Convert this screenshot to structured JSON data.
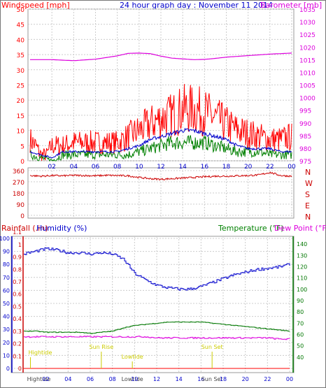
{
  "chart_data": [
    {
      "type": "line",
      "title": "24 hour graph day : November 11 2014",
      "y_left_label": "Windspeed [mph]",
      "y_right_label": "Barometer [mb]",
      "x_ticks": [
        "02",
        "04",
        "06",
        "08",
        "10",
        "12",
        "14",
        "16",
        "18",
        "20",
        "22",
        "00"
      ],
      "y_left_ticks": [
        "0",
        "5",
        "10",
        "15",
        "20",
        "25",
        "30",
        "35",
        "40",
        "45",
        "50"
      ],
      "y_right_ticks": [
        "975",
        "980",
        "985",
        "990",
        "995",
        "1000",
        "1005",
        "1010",
        "1015",
        "1020",
        "1025",
        "1030",
        "1035"
      ],
      "ylim_left": [
        0,
        50
      ],
      "ylim_right": [
        975,
        1035
      ],
      "grid": true,
      "colors": {
        "gust": "#ff0000",
        "wind": "#008000",
        "average": "#0000cc",
        "barometer": "#dd00dd"
      },
      "series": [
        {
          "key": "gust",
          "x": [
            0,
            0.5,
            1,
            1.5,
            2,
            2.5,
            3,
            4,
            5,
            6,
            7,
            8,
            9,
            10,
            11,
            12,
            13,
            14,
            15,
            16,
            17,
            18,
            19,
            20,
            21,
            22,
            23,
            24
          ],
          "values": [
            7,
            5,
            2,
            2,
            5,
            5,
            5,
            6,
            6,
            6,
            6,
            6,
            8,
            10,
            12,
            14,
            15,
            17,
            17,
            16,
            14,
            12,
            10,
            9,
            8,
            7,
            7,
            8
          ]
        },
        {
          "key": "average",
          "x": [
            0,
            1,
            2,
            3,
            4,
            5,
            6,
            7,
            8,
            9,
            10,
            11,
            12,
            13,
            14,
            15,
            16,
            17,
            18,
            19,
            20,
            21,
            22,
            23,
            24
          ],
          "values": [
            3,
            2,
            1,
            3,
            3,
            3,
            3,
            3,
            3,
            4,
            5,
            7,
            8,
            9,
            10,
            10,
            9,
            8,
            7,
            5,
            4,
            4,
            4,
            3,
            3
          ]
        },
        {
          "key": "wind",
          "x": [
            0,
            1,
            2,
            3,
            4,
            5,
            6,
            7,
            8,
            9,
            10,
            11,
            12,
            13,
            14,
            15,
            16,
            17,
            18,
            19,
            20,
            21,
            22,
            23,
            24
          ],
          "values": [
            2,
            1,
            0,
            2,
            2,
            2,
            2,
            2,
            2,
            2,
            3,
            4,
            5,
            6,
            6,
            6,
            6,
            5,
            4,
            3,
            3,
            3,
            2,
            2,
            2
          ]
        },
        {
          "key": "barometer",
          "axis": "right",
          "x": [
            0,
            2,
            4,
            6,
            8,
            9,
            10,
            11,
            12,
            13,
            14,
            15,
            16,
            17,
            18,
            20,
            22,
            24
          ],
          "values": [
            1015,
            1015,
            1014.6,
            1015.2,
            1016.5,
            1017.5,
            1017.6,
            1017.4,
            1016.4,
            1015.6,
            1015.3,
            1015,
            1015.1,
            1015.5,
            1016,
            1016.6,
            1017.2,
            1017.6
          ]
        }
      ]
    },
    {
      "type": "line",
      "y_left_ticks": [
        "360",
        "270",
        "180",
        "90",
        "0"
      ],
      "y_right_ticks": [
        "N",
        "W",
        "S",
        "E",
        "N"
      ],
      "ylim": [
        0,
        360
      ],
      "grid": true,
      "colors": {
        "direction": "#cc0000"
      },
      "series": [
        {
          "key": "direction",
          "x": [
            0,
            1,
            2,
            3,
            4,
            5,
            6,
            7,
            8,
            9,
            10,
            11,
            12,
            13,
            14,
            15,
            16,
            17,
            18,
            19,
            20,
            21,
            22,
            23,
            24
          ],
          "values": [
            320,
            315,
            320,
            318,
            322,
            320,
            318,
            322,
            320,
            318,
            305,
            295,
            290,
            295,
            300,
            305,
            310,
            315,
            315,
            318,
            320,
            325,
            345,
            320,
            315
          ]
        }
      ]
    },
    {
      "type": "line",
      "labels": {
        "rainfall": "Rainfall (.in)",
        "humidity": "Humidity (%)",
        "temperature": "Temperature (°F)",
        "dewpoint": "Dew Point (°F)"
      },
      "x_ticks": [
        "02",
        "04",
        "06",
        "08",
        "10",
        "12",
        "14",
        "16",
        "18",
        "20",
        "22",
        "00"
      ],
      "humidity_ticks": [
        "0",
        "10",
        "20",
        "30",
        "40",
        "50",
        "60",
        "70",
        "80",
        "90",
        "100"
      ],
      "rain_ticks": [
        "0",
        "0.1",
        "0.2",
        "0.3",
        "0.4",
        "0.5",
        "0.6",
        "0.7",
        "0.8",
        "0.9",
        "1",
        "1.1"
      ],
      "temp_ticks": [
        "40",
        "50",
        "60",
        "70",
        "80",
        "90",
        "100",
        "110",
        "120",
        "130",
        "140"
      ],
      "ylim_humidity": [
        0,
        100
      ],
      "ylim_temp": [
        30,
        145
      ],
      "grid": true,
      "colors": {
        "humidity": "#0000cc",
        "temperature": "#007700",
        "dewpoint": "#dd00dd",
        "rainfall": "#ff0000",
        "events": "#cccc00"
      },
      "series": [
        {
          "key": "humidity",
          "x": [
            0,
            1,
            2,
            3,
            4,
            5,
            6,
            7,
            8,
            9,
            10,
            11,
            12,
            13,
            14,
            15,
            16,
            17,
            18,
            19,
            20,
            21,
            22,
            23,
            24
          ],
          "values": [
            88,
            90,
            92,
            91,
            89,
            89,
            88,
            89,
            88,
            84,
            73,
            68,
            64,
            62,
            61,
            61,
            63,
            66,
            69,
            72,
            74,
            76,
            77,
            78,
            80
          ]
        },
        {
          "key": "temperature",
          "x": [
            0,
            1,
            2,
            3,
            4,
            5,
            6,
            7,
            8,
            9,
            10,
            11,
            12,
            13,
            14,
            15,
            16,
            17,
            18,
            19,
            20,
            21,
            22,
            23,
            24
          ],
          "values": [
            63,
            63,
            62,
            62,
            62,
            62,
            61,
            62,
            63,
            66,
            68,
            69,
            70,
            71,
            71,
            71,
            71,
            70,
            69,
            68,
            67,
            66,
            65,
            64,
            63
          ]
        },
        {
          "key": "dewpoint",
          "x": [
            0,
            1,
            2,
            3,
            4,
            5,
            6,
            7,
            8,
            9,
            10,
            11,
            12,
            13,
            14,
            15,
            16,
            17,
            18,
            19,
            20,
            21,
            22,
            23,
            24
          ],
          "values": [
            58,
            58,
            58,
            58,
            58,
            58,
            58,
            58,
            58,
            58,
            58,
            58,
            57,
            57,
            57,
            57,
            57,
            57,
            57,
            57,
            57,
            57,
            57,
            56,
            56
          ]
        }
      ],
      "events": [
        {
          "label": "Hightide",
          "x": 0.6,
          "row": "low"
        },
        {
          "label": "Sun Rise",
          "x": 7.0,
          "row": "mid"
        },
        {
          "label": "Lowtide",
          "x": 9.8,
          "row": "low2"
        },
        {
          "label": "Sun Set",
          "x": 17.0,
          "row": "mid"
        }
      ],
      "bottom_ticks": [
        "Hightide",
        "02",
        "04",
        "06",
        "08",
        "Lowtide",
        "10",
        "12",
        "14",
        "16",
        "Sun Set",
        "18",
        "20",
        "22",
        "00"
      ]
    }
  ]
}
